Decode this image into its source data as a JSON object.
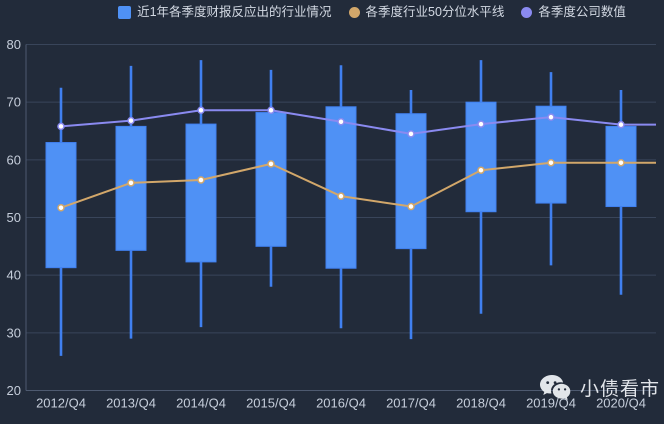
{
  "legend": {
    "items": [
      {
        "label": "近1年各季度财报反应出的行业情况",
        "color": "#4f91f5",
        "shape": "square"
      },
      {
        "label": "各季度行业50分位水平线",
        "color": "#d2a76a",
        "shape": "circle"
      },
      {
        "label": "各季度公司数值",
        "color": "#8a8af0",
        "shape": "circle"
      }
    ]
  },
  "watermark": {
    "text": "小债看市",
    "icon": "wechat-icon"
  },
  "colors": {
    "background": "#222b3a",
    "grid_line": "#39455a",
    "axis_line": "#4e5a70",
    "tick_label": "#c6cedb",
    "candle_fill": "#4f91f5",
    "whisker": "#4080f0",
    "percentile_line": "#d2a76a",
    "company_line": "#8a8af0",
    "marker_fill": "#ffffff"
  },
  "chart_data": {
    "type": "candlestick",
    "title": "",
    "xlabel": "",
    "ylabel": "",
    "grid": true,
    "legend_position": "top",
    "ylim": [
      20,
      80
    ],
    "ytick_step": 10,
    "categories": [
      "2012/Q4",
      "2013/Q4",
      "2014/Q4",
      "2015/Q4",
      "2016/Q4",
      "2017/Q4",
      "2018/Q4",
      "2019/Q4",
      "2020/Q4"
    ],
    "series": [
      {
        "name": "近1年各季度财报反应出的行业情况",
        "type": "candlestick",
        "color": "#4f91f5",
        "boxes": [
          {
            "low": 26.0,
            "q1": 41.3,
            "q3": 63.0,
            "high": 72.5
          },
          {
            "low": 29.0,
            "q1": 44.3,
            "q3": 65.8,
            "high": 76.3
          },
          {
            "low": 31.0,
            "q1": 42.3,
            "q3": 66.2,
            "high": 77.3
          },
          {
            "low": 38.0,
            "q1": 45.0,
            "q3": 68.2,
            "high": 75.6
          },
          {
            "low": 30.8,
            "q1": 41.2,
            "q3": 69.2,
            "high": 76.4
          },
          {
            "low": 28.9,
            "q1": 44.6,
            "q3": 68.0,
            "high": 72.1
          },
          {
            "low": 33.3,
            "q1": 51.0,
            "q3": 70.0,
            "high": 77.3
          },
          {
            "low": 41.7,
            "q1": 52.5,
            "q3": 69.3,
            "high": 75.2
          },
          {
            "low": 36.6,
            "q1": 51.9,
            "q3": 65.8,
            "high": 72.1
          }
        ]
      },
      {
        "name": "各季度行业50分位水平线",
        "type": "line",
        "color": "#d2a76a",
        "values": [
          51.7,
          56.0,
          56.5,
          59.3,
          53.7,
          51.9,
          58.2,
          59.5,
          59.5
        ]
      },
      {
        "name": "各季度公司数值",
        "type": "line",
        "color": "#8a8af0",
        "values": [
          65.8,
          66.8,
          68.6,
          68.6,
          66.6,
          64.5,
          66.2,
          67.4,
          66.1
        ]
      }
    ]
  }
}
